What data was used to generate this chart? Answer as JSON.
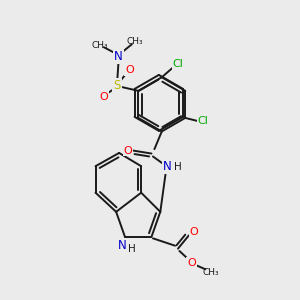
{
  "background_color": "#ebebeb",
  "bond_color": "#1a1a1a",
  "figsize": [
    3.0,
    3.0
  ],
  "dpi": 100,
  "atoms": {
    "N_blue": "#0000cc",
    "O_red": "#ff0000",
    "S_yellow": "#bbbb00",
    "Cl_green": "#00aa00",
    "C_black": "#1a1a1a",
    "H_black": "#1a1a1a"
  },
  "xlim": [
    0,
    10
  ],
  "ylim": [
    0,
    10
  ]
}
